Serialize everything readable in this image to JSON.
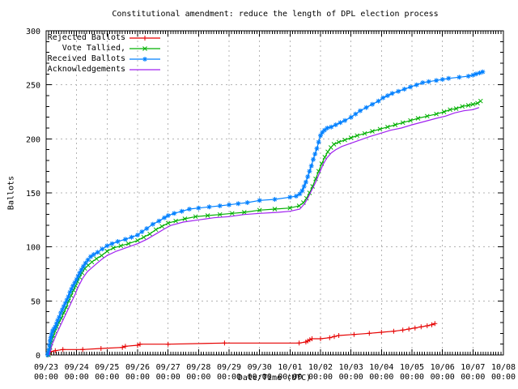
{
  "chart_data": {
    "type": "line",
    "title": "Constitutional amendment: reduce the length of DPL election process",
    "xlabel": "Date/Time (UTC)",
    "ylabel": "Ballots",
    "ylim": [
      0,
      300
    ],
    "xlim_days": [
      0,
      15
    ],
    "x_origin": "09/23 00:00",
    "grid": true,
    "grid_color": "#b4b4b4",
    "border_color": "#000000",
    "legend_position": "top-left-inside",
    "y_ticks": [
      0,
      50,
      100,
      150,
      200,
      250,
      300
    ],
    "x_ticks": [
      {
        "date": "09/23",
        "time": "00:00"
      },
      {
        "date": "09/24",
        "time": "00:00"
      },
      {
        "date": "09/25",
        "time": "00:00"
      },
      {
        "date": "09/26",
        "time": "00:00"
      },
      {
        "date": "09/27",
        "time": "00:00"
      },
      {
        "date": "09/28",
        "time": "00:00"
      },
      {
        "date": "09/29",
        "time": "00:00"
      },
      {
        "date": "09/30",
        "time": "00:00"
      },
      {
        "date": "10/01",
        "time": "00:00"
      },
      {
        "date": "10/02",
        "time": "00:00"
      },
      {
        "date": "10/03",
        "time": "00:00"
      },
      {
        "date": "10/04",
        "time": "00:00"
      },
      {
        "date": "10/05",
        "time": "00:00"
      },
      {
        "date": "10/06",
        "time": "00:00"
      },
      {
        "date": "10/07",
        "time": "00:00"
      },
      {
        "date": "10/08",
        "time": "00:00"
      }
    ],
    "series": [
      {
        "name": "Rejected Ballots",
        "color": "#e60000",
        "marker": "plus",
        "points": [
          [
            0.06,
            0
          ],
          [
            0.1,
            1
          ],
          [
            0.15,
            3
          ],
          [
            0.3,
            4
          ],
          [
            0.55,
            5
          ],
          [
            1.2,
            5
          ],
          [
            1.8,
            6
          ],
          [
            2.5,
            7
          ],
          [
            2.6,
            8
          ],
          [
            3.0,
            9
          ],
          [
            3.08,
            10
          ],
          [
            4.0,
            10
          ],
          [
            5.85,
            11
          ],
          [
            8.3,
            11
          ],
          [
            8.52,
            12
          ],
          [
            8.58,
            13
          ],
          [
            8.65,
            14
          ],
          [
            8.72,
            15
          ],
          [
            9.0,
            15
          ],
          [
            9.3,
            16
          ],
          [
            9.45,
            17
          ],
          [
            9.6,
            18
          ],
          [
            10.1,
            19
          ],
          [
            10.6,
            20
          ],
          [
            11.0,
            21
          ],
          [
            11.4,
            22
          ],
          [
            11.7,
            23
          ],
          [
            11.9,
            24
          ],
          [
            12.1,
            25
          ],
          [
            12.3,
            26
          ],
          [
            12.5,
            27
          ],
          [
            12.65,
            28
          ],
          [
            12.75,
            29
          ]
        ]
      },
      {
        "name": "Vote Tallied,",
        "color": "#00b000",
        "marker": "cross",
        "points": [
          [
            0.08,
            0
          ],
          [
            0.1,
            3
          ],
          [
            0.13,
            7
          ],
          [
            0.16,
            11
          ],
          [
            0.2,
            15
          ],
          [
            0.24,
            18
          ],
          [
            0.29,
            22
          ],
          [
            0.35,
            26
          ],
          [
            0.42,
            30
          ],
          [
            0.5,
            34
          ],
          [
            0.58,
            39
          ],
          [
            0.66,
            44
          ],
          [
            0.74,
            50
          ],
          [
            0.82,
            55
          ],
          [
            0.9,
            60
          ],
          [
            0.97,
            64
          ],
          [
            1.03,
            68
          ],
          [
            1.1,
            72
          ],
          [
            1.18,
            76
          ],
          [
            1.27,
            80
          ],
          [
            1.38,
            83
          ],
          [
            1.5,
            86
          ],
          [
            1.65,
            89
          ],
          [
            1.82,
            92
          ],
          [
            2.0,
            96
          ],
          [
            2.2,
            99
          ],
          [
            2.45,
            101
          ],
          [
            2.7,
            103
          ],
          [
            3.0,
            106
          ],
          [
            3.2,
            109
          ],
          [
            3.4,
            112
          ],
          [
            3.6,
            116
          ],
          [
            3.8,
            119
          ],
          [
            4.0,
            122
          ],
          [
            4.25,
            124
          ],
          [
            4.55,
            126
          ],
          [
            4.9,
            128
          ],
          [
            5.3,
            129
          ],
          [
            5.7,
            130
          ],
          [
            6.1,
            131
          ],
          [
            6.5,
            132
          ],
          [
            7.0,
            134
          ],
          [
            7.5,
            135
          ],
          [
            8.0,
            136
          ],
          [
            8.3,
            138
          ],
          [
            8.44,
            141
          ],
          [
            8.54,
            145
          ],
          [
            8.64,
            150
          ],
          [
            8.74,
            156
          ],
          [
            8.84,
            163
          ],
          [
            8.94,
            170
          ],
          [
            9.04,
            177
          ],
          [
            9.14,
            183
          ],
          [
            9.24,
            188
          ],
          [
            9.34,
            192
          ],
          [
            9.44,
            195
          ],
          [
            9.6,
            197
          ],
          [
            9.8,
            199
          ],
          [
            10.0,
            201
          ],
          [
            10.2,
            203
          ],
          [
            10.45,
            205
          ],
          [
            10.7,
            207
          ],
          [
            10.95,
            209
          ],
          [
            11.2,
            211
          ],
          [
            11.45,
            213
          ],
          [
            11.7,
            215
          ],
          [
            11.95,
            217
          ],
          [
            12.2,
            219
          ],
          [
            12.5,
            221
          ],
          [
            12.8,
            223
          ],
          [
            13.05,
            225
          ],
          [
            13.25,
            227
          ],
          [
            13.45,
            228
          ],
          [
            13.65,
            230
          ],
          [
            13.85,
            231
          ],
          [
            14.0,
            232
          ],
          [
            14.15,
            233
          ],
          [
            14.25,
            235
          ]
        ]
      },
      {
        "name": "Received Ballots",
        "color": "#0080ff",
        "marker": "star",
        "points": [
          [
            0.05,
            0
          ],
          [
            0.07,
            2
          ],
          [
            0.09,
            5
          ],
          [
            0.11,
            9
          ],
          [
            0.13,
            13
          ],
          [
            0.15,
            16
          ],
          [
            0.18,
            19
          ],
          [
            0.21,
            22
          ],
          [
            0.25,
            24
          ],
          [
            0.3,
            26
          ],
          [
            0.34,
            29
          ],
          [
            0.38,
            32
          ],
          [
            0.43,
            35
          ],
          [
            0.48,
            39
          ],
          [
            0.53,
            42
          ],
          [
            0.58,
            45
          ],
          [
            0.63,
            48
          ],
          [
            0.68,
            51
          ],
          [
            0.73,
            54
          ],
          [
            0.78,
            58
          ],
          [
            0.83,
            61
          ],
          [
            0.88,
            64
          ],
          [
            0.94,
            67
          ],
          [
            1.0,
            70
          ],
          [
            1.05,
            73
          ],
          [
            1.1,
            76
          ],
          [
            1.16,
            79
          ],
          [
            1.22,
            82
          ],
          [
            1.29,
            85
          ],
          [
            1.37,
            88
          ],
          [
            1.46,
            91
          ],
          [
            1.56,
            93
          ],
          [
            1.69,
            95
          ],
          [
            1.84,
            98
          ],
          [
            2.0,
            101
          ],
          [
            2.16,
            103
          ],
          [
            2.35,
            105
          ],
          [
            2.6,
            107
          ],
          [
            2.8,
            109
          ],
          [
            3.0,
            111
          ],
          [
            3.14,
            114
          ],
          [
            3.3,
            117
          ],
          [
            3.5,
            121
          ],
          [
            3.7,
            124
          ],
          [
            3.88,
            127
          ],
          [
            4.0,
            129
          ],
          [
            4.2,
            131
          ],
          [
            4.45,
            133
          ],
          [
            4.7,
            135
          ],
          [
            5.0,
            136
          ],
          [
            5.35,
            137
          ],
          [
            5.7,
            138
          ],
          [
            6.0,
            139
          ],
          [
            6.3,
            140
          ],
          [
            6.6,
            141
          ],
          [
            7.0,
            143
          ],
          [
            7.5,
            144
          ],
          [
            8.0,
            146
          ],
          [
            8.2,
            147
          ],
          [
            8.32,
            149
          ],
          [
            8.4,
            152
          ],
          [
            8.46,
            156
          ],
          [
            8.52,
            160
          ],
          [
            8.58,
            165
          ],
          [
            8.64,
            170
          ],
          [
            8.7,
            175
          ],
          [
            8.76,
            181
          ],
          [
            8.82,
            186
          ],
          [
            8.88,
            191
          ],
          [
            8.94,
            197
          ],
          [
            9.0,
            203
          ],
          [
            9.06,
            206
          ],
          [
            9.13,
            208
          ],
          [
            9.22,
            210
          ],
          [
            9.35,
            211
          ],
          [
            9.5,
            213
          ],
          [
            9.65,
            215
          ],
          [
            9.8,
            217
          ],
          [
            10.0,
            220
          ],
          [
            10.15,
            223
          ],
          [
            10.3,
            226
          ],
          [
            10.5,
            229
          ],
          [
            10.7,
            232
          ],
          [
            10.9,
            235
          ],
          [
            11.05,
            238
          ],
          [
            11.2,
            240
          ],
          [
            11.35,
            242
          ],
          [
            11.55,
            244
          ],
          [
            11.75,
            246
          ],
          [
            11.95,
            248
          ],
          [
            12.15,
            250
          ],
          [
            12.35,
            252
          ],
          [
            12.55,
            253
          ],
          [
            12.8,
            254
          ],
          [
            13.0,
            255
          ],
          [
            13.2,
            256
          ],
          [
            13.55,
            257
          ],
          [
            13.85,
            258
          ],
          [
            14.0,
            259
          ],
          [
            14.1,
            260
          ],
          [
            14.22,
            261
          ],
          [
            14.32,
            262
          ]
        ]
      },
      {
        "name": "Acknowledgements",
        "color": "#a020f0",
        "marker": "none",
        "points": [
          [
            0.1,
            0
          ],
          [
            0.2,
            10
          ],
          [
            0.35,
            20
          ],
          [
            0.5,
            29
          ],
          [
            0.65,
            38
          ],
          [
            0.8,
            47
          ],
          [
            0.95,
            56
          ],
          [
            1.05,
            63
          ],
          [
            1.2,
            71
          ],
          [
            1.35,
            77
          ],
          [
            1.55,
            82
          ],
          [
            1.8,
            88
          ],
          [
            2.0,
            92
          ],
          [
            2.3,
            96
          ],
          [
            2.7,
            100
          ],
          [
            3.0,
            103
          ],
          [
            3.3,
            107
          ],
          [
            3.6,
            112
          ],
          [
            3.9,
            117
          ],
          [
            4.1,
            120
          ],
          [
            4.5,
            123
          ],
          [
            5.0,
            125
          ],
          [
            5.5,
            127
          ],
          [
            6.0,
            128
          ],
          [
            6.5,
            130
          ],
          [
            7.0,
            131
          ],
          [
            7.6,
            132
          ],
          [
            8.0,
            133
          ],
          [
            8.32,
            135
          ],
          [
            8.48,
            140
          ],
          [
            8.6,
            146
          ],
          [
            8.72,
            153
          ],
          [
            8.84,
            160
          ],
          [
            8.96,
            168
          ],
          [
            9.08,
            176
          ],
          [
            9.2,
            182
          ],
          [
            9.35,
            187
          ],
          [
            9.5,
            190
          ],
          [
            9.7,
            193
          ],
          [
            10.0,
            196
          ],
          [
            10.3,
            199
          ],
          [
            10.6,
            202
          ],
          [
            10.95,
            205
          ],
          [
            11.3,
            208
          ],
          [
            11.65,
            210
          ],
          [
            12.0,
            213
          ],
          [
            12.4,
            216
          ],
          [
            12.8,
            219
          ],
          [
            13.1,
            221
          ],
          [
            13.4,
            224
          ],
          [
            13.7,
            226
          ],
          [
            14.0,
            227
          ],
          [
            14.2,
            229
          ]
        ]
      }
    ]
  }
}
